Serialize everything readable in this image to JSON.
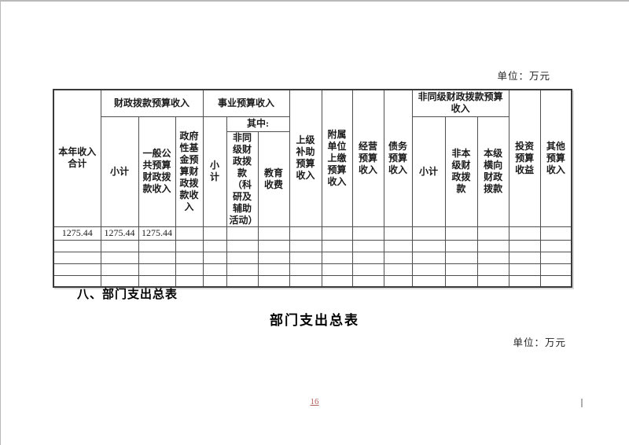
{
  "page": {
    "unit_label_top": "单位：万元",
    "unit_label_bottom": "单位：万元",
    "section_heading": "八、部门支出总表",
    "table_title": "部门支出总表",
    "page_number": "16"
  },
  "colors": {
    "page_number": "#b6605c",
    "table_border": "#4f4f4f"
  },
  "revenue_table": {
    "header": {
      "col_total": "本年收入合计",
      "group_fiscal": "财政拨款预算收入",
      "fiscal_subtotal": "小计",
      "fiscal_general": "一般公共预算财政拨款收入",
      "fiscal_gov_fund": "政府性基金预算财政拨款收入",
      "group_business": "事业预算收入",
      "business_subtotal": "小计",
      "among_which": "其中:",
      "business_non_same_level": "非同级财政拨款（科研及辅助活动）",
      "business_education_fees": "教育收费",
      "col_superior_subsidy": "上级补助预算收入",
      "col_affiliated_remit": "附属单位上缴预算收入",
      "col_operating": "经营预算收入",
      "col_debt": "债务预算收入",
      "group_non_same_level": "非同级财政拨款预算收入",
      "nsl_subtotal": "小计",
      "nsl_non_current_level": "非本级财政拨款",
      "nsl_horizontal": "本级横向财政拨款",
      "col_investment": "投资预算收益",
      "col_other": "其他预算收入"
    },
    "rows": [
      [
        "1275.44",
        "1275.44",
        "1275.44",
        "",
        "",
        "",
        "",
        "",
        "",
        "",
        "",
        "",
        "",
        "",
        "",
        ""
      ],
      [
        "",
        "",
        "",
        "",
        "",
        "",
        "",
        "",
        "",
        "",
        "",
        "",
        "",
        "",
        "",
        ""
      ],
      [
        "",
        "",
        "",
        "",
        "",
        "",
        "",
        "",
        "",
        "",
        "",
        "",
        "",
        "",
        "",
        ""
      ],
      [
        "",
        "",
        "",
        "",
        "",
        "",
        "",
        "",
        "",
        "",
        "",
        "",
        "",
        "",
        "",
        ""
      ],
      [
        "",
        "",
        "",
        "",
        "",
        "",
        "",
        "",
        "",
        "",
        "",
        "",
        "",
        "",
        "",
        ""
      ]
    ]
  }
}
